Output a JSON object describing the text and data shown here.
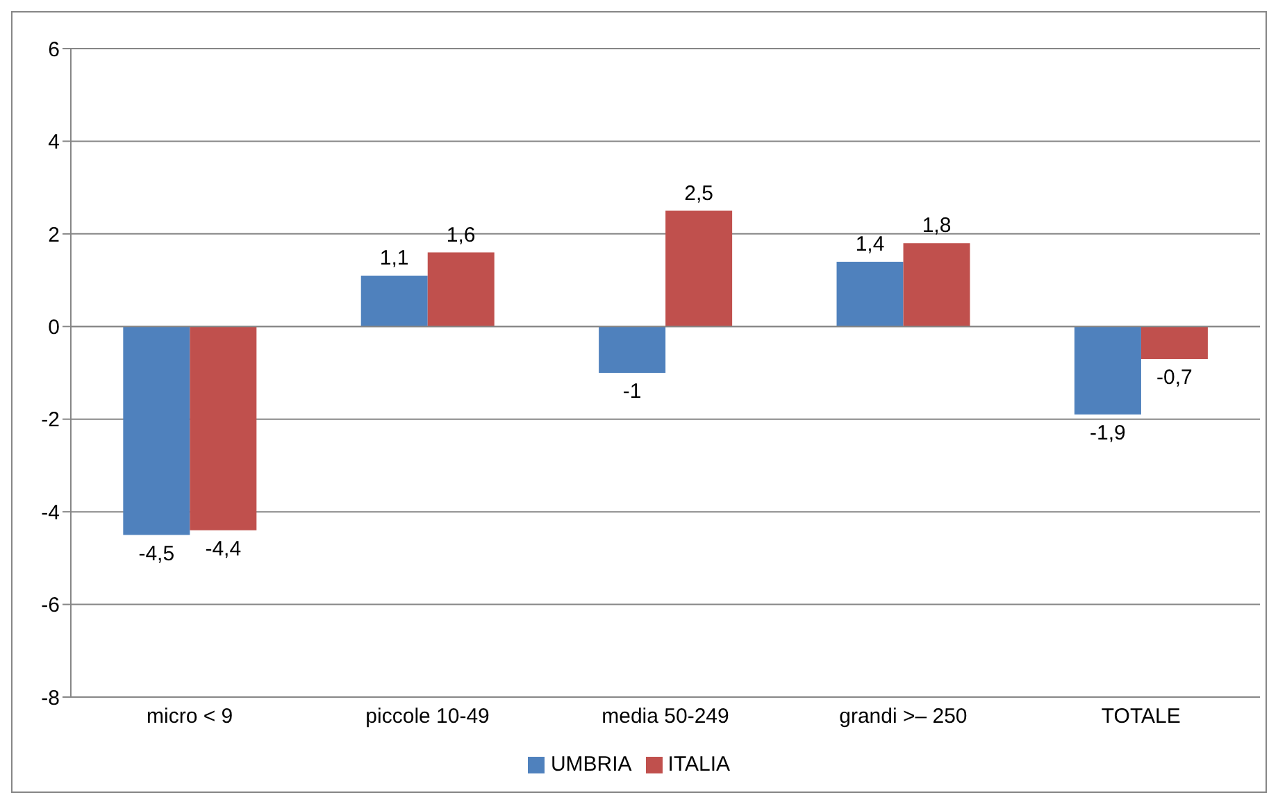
{
  "chart_data": {
    "type": "bar",
    "categories": [
      "micro < 9",
      "piccole 10-49",
      "media 50-249",
      "grandi >– 250",
      "TOTALE"
    ],
    "series": [
      {
        "name": "UMBRIA",
        "color": "#4f81bd",
        "values": [
          -4.5,
          1.1,
          -1,
          1.4,
          -1.9
        ],
        "value_labels": [
          "-4,5",
          "1,1",
          "-1",
          "1,4",
          "-1,9"
        ]
      },
      {
        "name": "ITALIA",
        "color": "#c0504d",
        "values": [
          -4.4,
          1.6,
          2.5,
          1.8,
          -0.7
        ],
        "value_labels": [
          "-4,4",
          "1,6",
          "2,5",
          "1,8",
          "-0,7"
        ]
      }
    ],
    "ylim": [
      -8,
      6
    ],
    "yticks": [
      -8,
      -6,
      -4,
      -2,
      0,
      2,
      4,
      6
    ],
    "grid": "y",
    "legend": "bottom"
  }
}
